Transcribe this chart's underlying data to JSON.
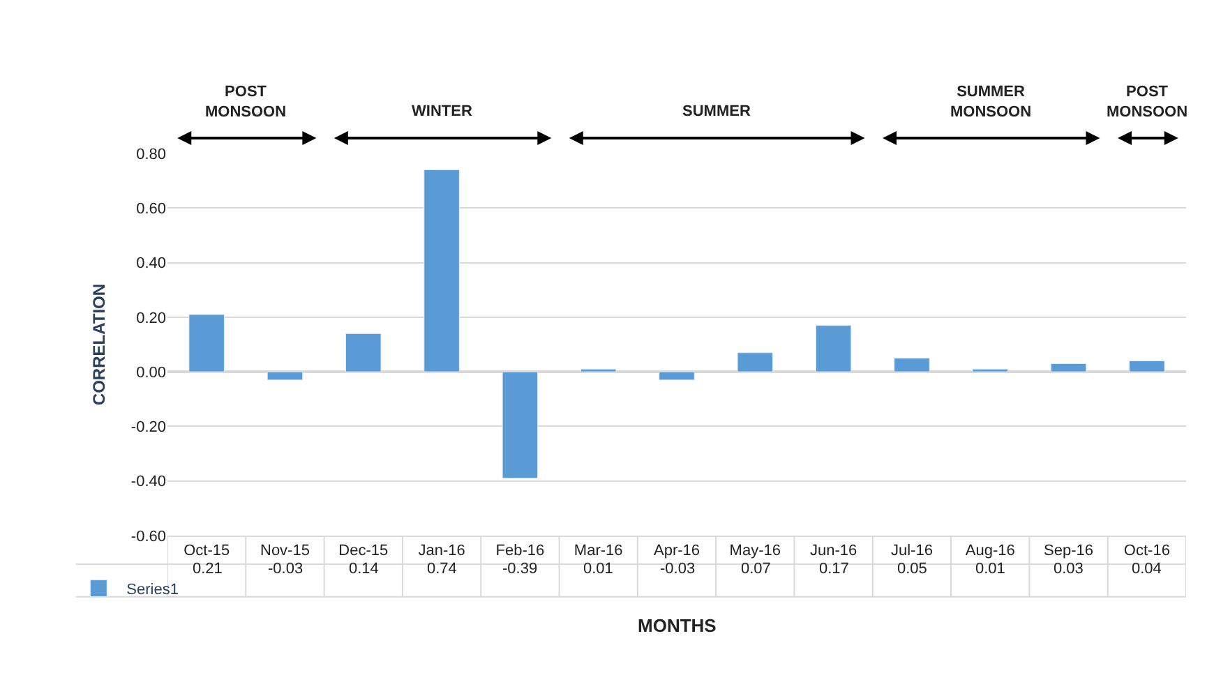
{
  "chart_data": {
    "type": "bar",
    "xlabel": "MONTHS",
    "ylabel": "CORRELATION",
    "categories": [
      "Oct-15",
      "Nov-15",
      "Dec-15",
      "Jan-16",
      "Feb-16",
      "Mar-16",
      "Apr-16",
      "May-16",
      "Jun-16",
      "Jul-16",
      "Aug-16",
      "Sep-16",
      "Oct-16"
    ],
    "series": [
      {
        "name": "Series1",
        "color": "#5b9bd5",
        "values": [
          0.21,
          -0.03,
          0.14,
          0.74,
          -0.39,
          0.01,
          -0.03,
          0.07,
          0.17,
          0.05,
          0.01,
          0.03,
          0.04
        ]
      }
    ],
    "ylim": [
      -0.6,
      0.8
    ],
    "yticks": [
      {
        "value": -0.6,
        "label": "-0.60"
      },
      {
        "value": -0.4,
        "label": "-0.40"
      },
      {
        "value": -0.2,
        "label": "-0.20"
      },
      {
        "value": 0,
        "label": "0.00"
      },
      {
        "value": 0.2,
        "label": "0.20"
      },
      {
        "value": 0.4,
        "label": "0.40"
      },
      {
        "value": 0.6,
        "label": "0.60"
      },
      {
        "value": 0.8,
        "label": "0.80"
      }
    ],
    "annotations": [
      "POST MONSOON",
      "WINTER",
      "SUMMER",
      "SUMMER MONSOON",
      "POST MONSOON"
    ],
    "data_labels": true,
    "grid": "y",
    "legend": "bottom left"
  }
}
